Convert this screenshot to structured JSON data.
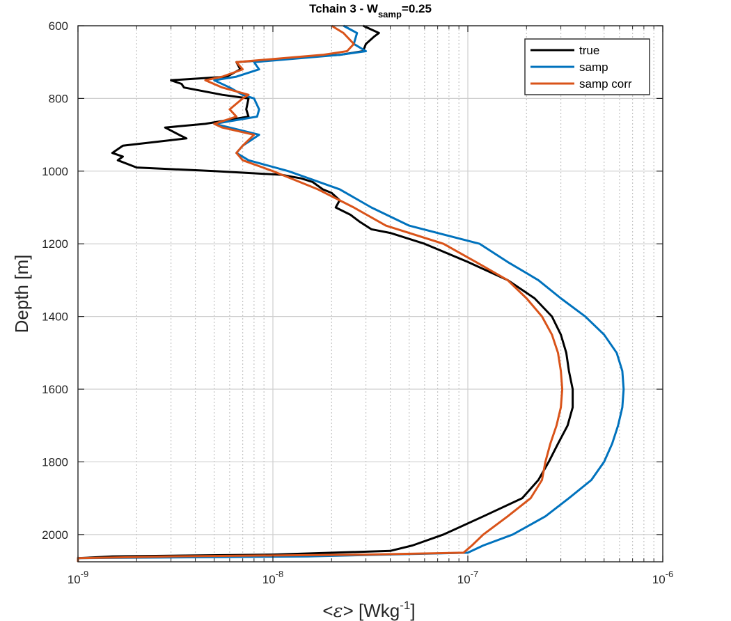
{
  "chart_data": {
    "type": "line",
    "title": {
      "main": "Tchain 3 - W",
      "sub": "samp",
      "tail": "=0.25"
    },
    "xlabel": {
      "prefix": "<",
      "symbol": "ε",
      "mid": "> [Wkg",
      "sup": "-1",
      "suffix": "]"
    },
    "ylabel": "Depth [m]",
    "x_scale": "log",
    "xlim": [
      1e-09,
      1e-06
    ],
    "ylim": [
      600,
      2075
    ],
    "y_reversed": true,
    "x_ticks": [
      {
        "value": 1e-09,
        "base": "10",
        "exp": "-9"
      },
      {
        "value": 1e-08,
        "base": "10",
        "exp": "-8"
      },
      {
        "value": 1e-07,
        "base": "10",
        "exp": "-7"
      },
      {
        "value": 1e-06,
        "base": "10",
        "exp": "-6"
      }
    ],
    "y_ticks": [
      600,
      800,
      1000,
      1200,
      1400,
      1600,
      1800,
      2000
    ],
    "y_tick_labels": [
      "600",
      "800",
      "1000",
      "1200",
      "1400",
      "1600",
      "1800",
      "2000"
    ],
    "grid": true,
    "legend_position": "top-right",
    "series": [
      {
        "name": "true",
        "color": "#000000",
        "depth": [
          600,
          620,
          630,
          650,
          670,
          680,
          700,
          720,
          740,
          750,
          760,
          770,
          790,
          800,
          830,
          850,
          870,
          880,
          900,
          910,
          930,
          950,
          960,
          970,
          990,
          1000,
          1010,
          1020,
          1030,
          1050,
          1060,
          1080,
          1100,
          1120,
          1140,
          1160,
          1170,
          1200,
          1250,
          1300,
          1350,
          1400,
          1450,
          1500,
          1550,
          1600,
          1650,
          1700,
          1750,
          1800,
          1850,
          1900,
          1950,
          2000,
          2030,
          2045,
          2055,
          2060,
          2065,
          2070,
          2075
        ],
        "values": [
          2.9e-08,
          3.5e-08,
          3.3e-08,
          3e-08,
          2.9e-08,
          2.2e-08,
          6.5e-09,
          6.8e-09,
          5.8e-09,
          3e-09,
          3.4e-09,
          3.5e-09,
          5.5e-09,
          7.5e-09,
          7.3e-09,
          7.5e-09,
          4.5e-09,
          2.8e-09,
          3.3e-09,
          3.6e-09,
          1.7e-09,
          1.5e-09,
          1.7e-09,
          1.6e-09,
          2e-09,
          5e-09,
          1.1e-08,
          1.4e-08,
          1.6e-08,
          1.8e-08,
          2e-08,
          2.2e-08,
          2.1e-08,
          2.5e-08,
          2.8e-08,
          3.2e-08,
          4e-08,
          6e-08,
          1e-07,
          1.6e-07,
          2.2e-07,
          2.7e-07,
          3e-07,
          3.2e-07,
          3.3e-07,
          3.45e-07,
          3.45e-07,
          3.25e-07,
          2.9e-07,
          2.6e-07,
          2.3e-07,
          1.9e-07,
          1.2e-07,
          7.5e-08,
          5.2e-08,
          4e-08,
          1e-08,
          1.5e-09,
          1e-09,
          1e-09,
          1e-09
        ]
      },
      {
        "name": "samp",
        "color": "#0072BD",
        "depth": [
          600,
          620,
          650,
          670,
          680,
          700,
          720,
          740,
          750,
          770,
          790,
          800,
          830,
          850,
          870,
          880,
          900,
          930,
          950,
          970,
          1000,
          1050,
          1100,
          1150,
          1200,
          1250,
          1300,
          1350,
          1400,
          1450,
          1500,
          1550,
          1600,
          1650,
          1700,
          1750,
          1800,
          1850,
          1900,
          1950,
          2000,
          2030,
          2050,
          2060,
          2065,
          2070,
          2075
        ],
        "values": [
          2.3e-08,
          2.7e-08,
          2.6e-08,
          3e-08,
          2.2e-08,
          8e-09,
          8.5e-09,
          6.5e-09,
          5e-09,
          6e-09,
          7e-09,
          8e-09,
          8.5e-09,
          8.3e-09,
          5e-09,
          6e-09,
          8.5e-09,
          7e-09,
          6.5e-09,
          7.5e-09,
          1.2e-08,
          2.2e-08,
          3.2e-08,
          5e-08,
          1.15e-07,
          1.6e-07,
          2.3e-07,
          3e-07,
          4e-07,
          5e-07,
          5.8e-07,
          6.2e-07,
          6.3e-07,
          6.2e-07,
          5.9e-07,
          5.5e-07,
          5e-07,
          4.3e-07,
          3.3e-07,
          2.5e-07,
          1.7e-07,
          1.2e-07,
          1e-07,
          1.5e-08,
          1e-09,
          1e-09,
          1e-09
        ]
      },
      {
        "name": "samp corr",
        "color": "#D95319",
        "depth": [
          600,
          620,
          650,
          670,
          680,
          700,
          720,
          740,
          750,
          770,
          790,
          800,
          830,
          850,
          870,
          880,
          900,
          930,
          950,
          970,
          1000,
          1050,
          1100,
          1150,
          1200,
          1250,
          1300,
          1350,
          1400,
          1450,
          1500,
          1550,
          1600,
          1650,
          1700,
          1750,
          1800,
          1850,
          1900,
          1950,
          2000,
          2030,
          2050,
          2055,
          2060,
          2065,
          2070,
          2075
        ],
        "values": [
          2e-08,
          2.3e-08,
          2.6e-08,
          2.4e-08,
          1.8e-08,
          6.5e-09,
          7e-09,
          5.5e-09,
          4.5e-09,
          5.5e-09,
          7.5e-09,
          7e-09,
          6e-09,
          6.5e-09,
          5e-09,
          5.5e-09,
          8e-09,
          7e-09,
          6.5e-09,
          7e-09,
          1e-08,
          1.7e-08,
          2.6e-08,
          3.8e-08,
          7.5e-08,
          1.1e-07,
          1.6e-07,
          2e-07,
          2.4e-07,
          2.7e-07,
          2.9e-07,
          3e-07,
          3.05e-07,
          3e-07,
          2.85e-07,
          2.65e-07,
          2.5e-07,
          2.4e-07,
          2.1e-07,
          1.6e-07,
          1.2e-07,
          1.05e-07,
          9.5e-08,
          3e-08,
          3e-09,
          1e-09,
          1e-09,
          1e-09
        ]
      }
    ]
  }
}
